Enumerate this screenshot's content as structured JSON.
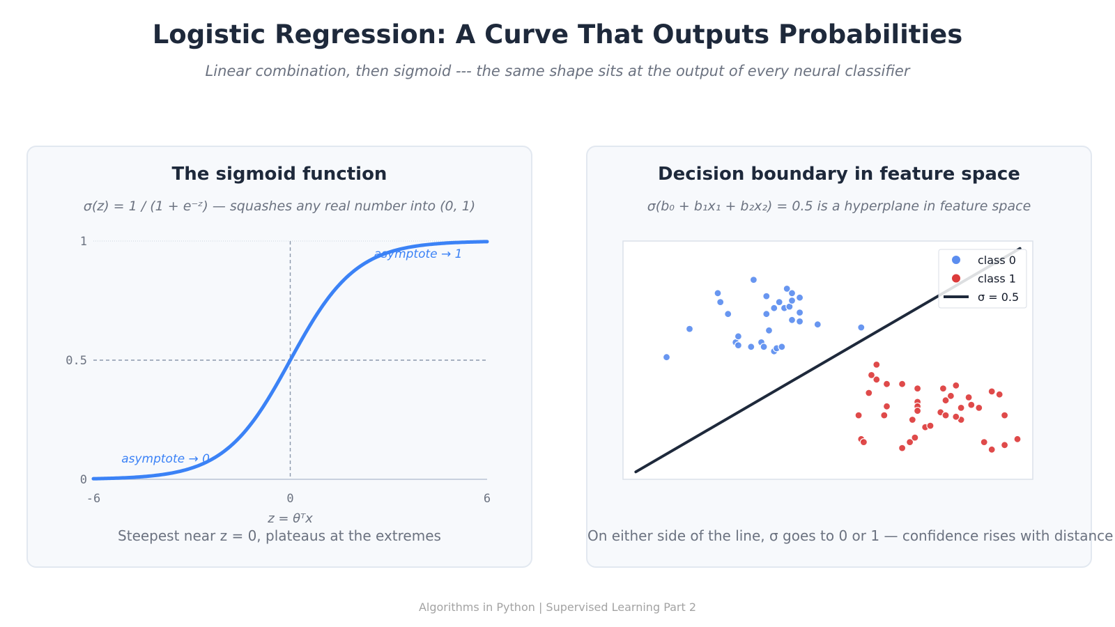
{
  "header": {
    "title": "Logistic Regression: A Curve That Outputs Probabilities",
    "subtitle": "Linear combination, then sigmoid --- the same shape sits at the output of every neural classifier"
  },
  "left_panel": {
    "title": "The sigmoid function",
    "formula": "σ(z) = 1 / (1 + e⁻ᶻ)  — squashes any real number into (0, 1)",
    "caption": "Steepest near z = 0, plateaus at the extremes"
  },
  "right_panel": {
    "title": "Decision boundary in feature space",
    "formula": "σ(b₀ + b₁x₁ + b₂x₂) = 0.5  is a hyperplane in feature space",
    "caption": "On either side of the line, σ goes to 0 or 1 — confidence rises with distance"
  },
  "footer": "Algorithms in Python  |  Supervised Learning Part 2",
  "colors": {
    "curve": "#3b82f6",
    "class0": "#5b8def",
    "class1": "#dc3b3b",
    "boundary": "#1e293b",
    "text_dark": "#1e293b",
    "text_muted": "#6b7280"
  },
  "chart_data": [
    {
      "type": "line",
      "function": "sigmoid",
      "xlabel": "z = θᵀx",
      "ylabel": "",
      "xlim": [
        -6,
        6
      ],
      "ylim": [
        0,
        1
      ],
      "xticks": [
        "-6",
        "0",
        "6"
      ],
      "yticks": [
        "0",
        "0.5",
        "1"
      ],
      "series": [
        {
          "values": [
            [
              -6,
              0.0025
            ],
            [
              -5,
              0.0067
            ],
            [
              -4,
              0.018
            ],
            [
              -3,
              0.047
            ],
            [
              -2,
              0.119
            ],
            [
              -1,
              0.269
            ],
            [
              0,
              0.5
            ],
            [
              1,
              0.731
            ],
            [
              2,
              0.881
            ],
            [
              3,
              0.953
            ],
            [
              4,
              0.982
            ],
            [
              5,
              0.9933
            ],
            [
              6,
              0.9975
            ]
          ]
        }
      ],
      "reference_lines": {
        "y": 0.5,
        "x": 0
      },
      "annotations": [
        {
          "text": "asymptote → 1",
          "x": 3.9,
          "y": 0.93
        },
        {
          "text": "asymptote → 0",
          "x": -3.8,
          "y": 0.07
        }
      ]
    },
    {
      "type": "scatter",
      "xlim": [
        -4,
        4
      ],
      "ylim": [
        -4,
        4
      ],
      "legend_position": "top-right",
      "grid": false,
      "series": [
        {
          "name": "class 0",
          "points": [
            [
              -3.15,
              0.1
            ],
            [
              -2.7,
              1.05
            ],
            [
              -2.15,
              2.25
            ],
            [
              -2.1,
              1.95
            ],
            [
              -1.95,
              1.55
            ],
            [
              -1.8,
              0.6
            ],
            [
              -1.75,
              0.5
            ],
            [
              -1.75,
              0.8
            ],
            [
              -1.45,
              2.7
            ],
            [
              -1.5,
              0.45
            ],
            [
              -1.3,
              0.6
            ],
            [
              -1.25,
              0.45
            ],
            [
              -1.2,
              2.15
            ],
            [
              -1.2,
              1.55
            ],
            [
              -1.15,
              1.0
            ],
            [
              -1.05,
              1.75
            ],
            [
              -1.05,
              0.3
            ],
            [
              -1.0,
              0.4
            ],
            [
              -0.95,
              1.95
            ],
            [
              -0.9,
              0.45
            ],
            [
              -0.85,
              1.75
            ],
            [
              -0.8,
              2.4
            ],
            [
              -0.75,
              1.8
            ],
            [
              -0.7,
              1.35
            ],
            [
              -0.7,
              2.0
            ],
            [
              -0.7,
              2.25
            ],
            [
              -0.55,
              1.6
            ],
            [
              -0.55,
              1.3
            ],
            [
              -0.55,
              2.1
            ],
            [
              -0.2,
              1.2
            ],
            [
              0.65,
              1.1
            ]
          ]
        },
        {
          "name": "class 1",
          "points": [
            [
              0.95,
              -0.15
            ],
            [
              0.95,
              -0.65
            ],
            [
              0.85,
              -0.5
            ],
            [
              0.8,
              -1.1
            ],
            [
              0.65,
              -2.65
            ],
            [
              0.6,
              -1.85
            ],
            [
              0.7,
              -2.75
            ],
            [
              1.15,
              -0.8
            ],
            [
              1.1,
              -1.85
            ],
            [
              1.15,
              -1.55
            ],
            [
              1.45,
              -0.8
            ],
            [
              1.75,
              -0.95
            ],
            [
              1.75,
              -1.4
            ],
            [
              1.75,
              -1.55
            ],
            [
              1.65,
              -2.0
            ],
            [
              1.45,
              -2.95
            ],
            [
              1.6,
              -2.75
            ],
            [
              1.7,
              -2.6
            ],
            [
              1.75,
              -1.7
            ],
            [
              1.9,
              -2.25
            ],
            [
              2.2,
              -1.75
            ],
            [
              2.25,
              -0.95
            ],
            [
              2.3,
              -1.85
            ],
            [
              2.3,
              -1.35
            ],
            [
              2.4,
              -1.2
            ],
            [
              2.5,
              -0.85
            ],
            [
              2.6,
              -1.6
            ],
            [
              2.6,
              -2.0
            ],
            [
              2.8,
              -1.5
            ],
            [
              2.75,
              -1.25
            ],
            [
              2.95,
              -1.6
            ],
            [
              3.2,
              -1.05
            ],
            [
              3.45,
              -1.85
            ],
            [
              3.7,
              -2.65
            ],
            [
              3.2,
              -3.0
            ],
            [
              2.5,
              -1.9
            ],
            [
              2.0,
              -2.2
            ],
            [
              3.35,
              -1.15
            ],
            [
              3.45,
              -2.85
            ],
            [
              3.05,
              -2.75
            ]
          ]
        },
        {
          "name": "σ = 0.5",
          "type": "line",
          "points": [
            [
              -3.75,
              -3.75
            ],
            [
              3.75,
              3.75
            ]
          ]
        }
      ]
    }
  ]
}
